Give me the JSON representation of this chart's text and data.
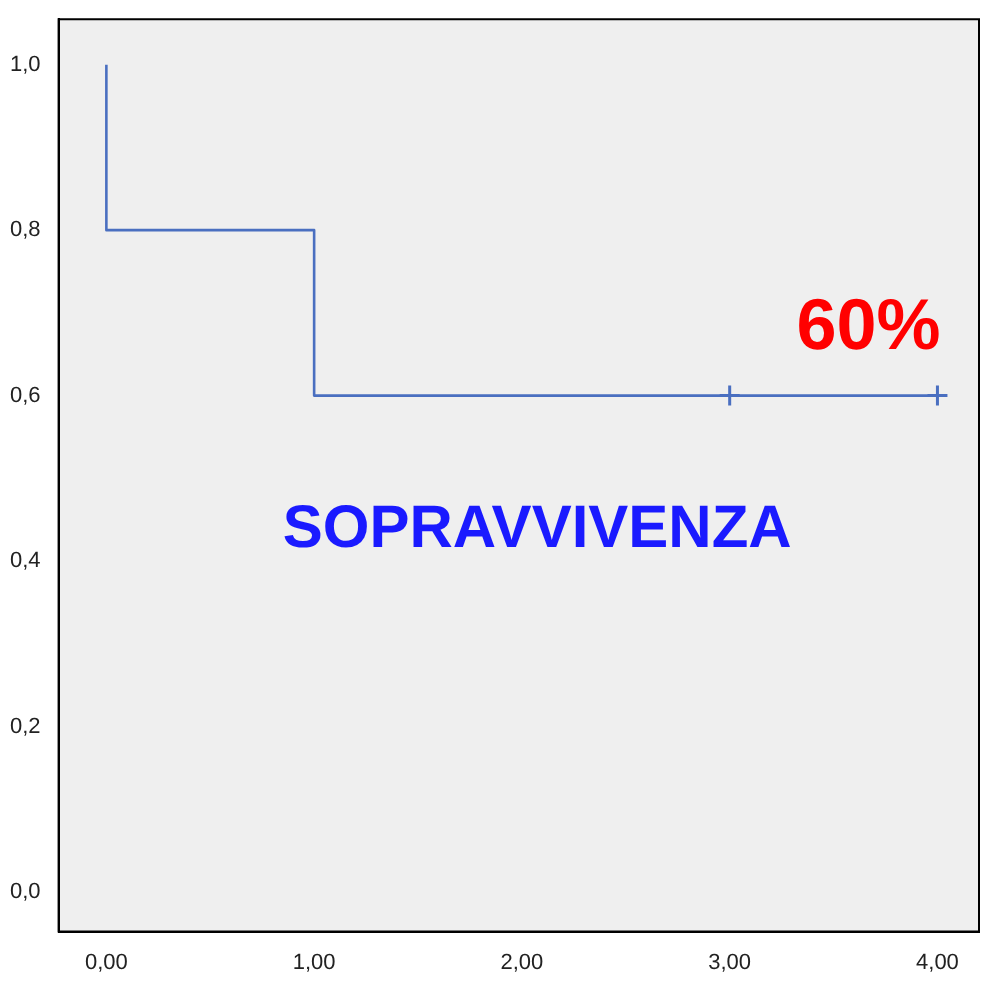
{
  "chart_data": {
    "type": "step",
    "xlim": [
      -0.23,
      4.2
    ],
    "ylim": [
      -0.048,
      1.055
    ],
    "xticks": [
      {
        "value": 0,
        "label": "0,00"
      },
      {
        "value": 1,
        "label": "1,00"
      },
      {
        "value": 2,
        "label": "2,00"
      },
      {
        "value": 3,
        "label": "3,00"
      },
      {
        "value": 4,
        "label": "4,00"
      }
    ],
    "yticks": [
      {
        "value": 0,
        "label": "0,0"
      },
      {
        "value": 0.2,
        "label": "0,2"
      },
      {
        "value": 0.4,
        "label": "0,4"
      },
      {
        "value": 0.6,
        "label": "0,6"
      },
      {
        "value": 0.8,
        "label": "0,8"
      },
      {
        "value": 1,
        "label": "1,0"
      }
    ],
    "series": [
      {
        "color": "#4a6fc0",
        "x": [
          0,
          1,
          2,
          4
        ],
        "values": [
          1,
          0.8,
          0.6,
          0.6
        ],
        "marker": "none"
      },
      {
        "type": "scatter",
        "color": "#4a6fc0",
        "x": [
          3,
          4
        ],
        "values": [
          0.6,
          0.6
        ],
        "marker": "cross"
      }
    ],
    "annotations": [
      "60%",
      "SOPRAVVIVENZA"
    ],
    "grid": false,
    "legend": false
  }
}
